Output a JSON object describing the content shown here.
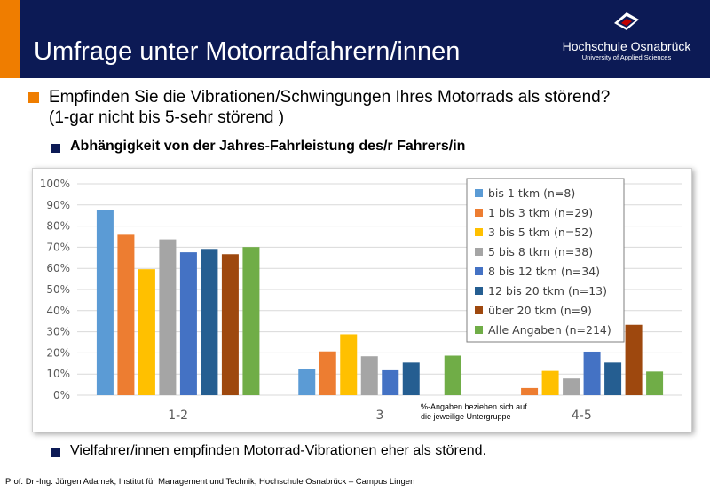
{
  "header": {
    "title": "Umfrage unter Motorradfahrern/innen",
    "logo_name": "Hochschule Osnabrück",
    "logo_sub": "University of Applied Sciences",
    "logo_icon": "hochschule-logo-icon",
    "colors": {
      "header_bg": "#0c1a55",
      "accent": "#ef7d00"
    }
  },
  "question": {
    "line1": "Empfinden Sie die Vibrationen/Schwingungen Ihres Motorrads als störend?",
    "line2": "(1-gar nicht bis 5-sehr störend )"
  },
  "subheading": "Abhängigkeit von der Jahres-Fahrleistung des/r Fahrers/in",
  "chart_data": {
    "type": "bar",
    "categories": [
      "1-2",
      "3",
      "4-5"
    ],
    "ylim": [
      0,
      100
    ],
    "yticks": [
      "0%",
      "10%",
      "20%",
      "30%",
      "40%",
      "50%",
      "60%",
      "70%",
      "80%",
      "90%",
      "100%"
    ],
    "grid": true,
    "legend_position": "top-right",
    "series": [
      {
        "name": "bis 1 tkm (n=8)",
        "color": "#5b9bd5",
        "values": [
          87.5,
          12.5,
          0
        ]
      },
      {
        "name": "1 bis 3 tkm (n=29)",
        "color": "#ed7d31",
        "values": [
          75.9,
          20.7,
          3.4
        ]
      },
      {
        "name": "3 bis 5 tkm (n=52)",
        "color": "#ffc000",
        "values": [
          59.6,
          28.8,
          11.5
        ]
      },
      {
        "name": "5 bis 8 tkm (n=38)",
        "color": "#a5a5a5",
        "values": [
          73.7,
          18.4,
          7.9
        ]
      },
      {
        "name": "8 bis 12 tkm (n=34)",
        "color": "#4472c4",
        "values": [
          67.6,
          11.8,
          20.6
        ]
      },
      {
        "name": "12 bis 20 tkm (n=13)",
        "color": "#255e91",
        "values": [
          69.2,
          15.4,
          15.4
        ]
      },
      {
        "name": "über 20 tkm (n=9)",
        "color": "#9e480e",
        "values": [
          66.7,
          0,
          33.3
        ]
      },
      {
        "name": "Alle Angaben (n=214)",
        "color": "#70ad47",
        "values": [
          70.1,
          18.7,
          11.2
        ]
      }
    ],
    "annotation": [
      "%-Angaben beziehen sich auf",
      "die jeweilige Untergruppe"
    ]
  },
  "conclusion": "Vielfahrer/innen empfinden Motorrad-Vibrationen eher als störend.",
  "footer": "Prof. Dr.-Ing. Jürgen Adamek,  Institut für Management und Technik, Hochschule Osnabrück – Campus Lingen"
}
